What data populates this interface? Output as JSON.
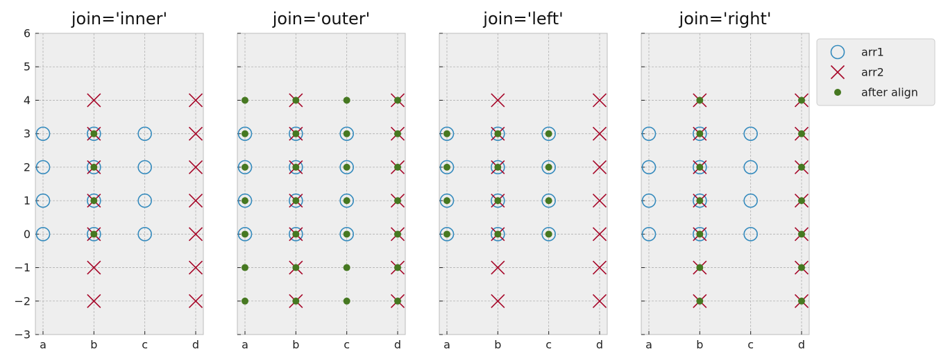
{
  "chart_data": [
    {
      "type": "scatter",
      "title": "join='inner'",
      "categories": [
        "a",
        "b",
        "c",
        "d"
      ],
      "ylim": [
        -3,
        6
      ],
      "yticks": [
        -3,
        -2,
        -1,
        0,
        1,
        2,
        3,
        4,
        5,
        6
      ],
      "show_ytick_labels": true,
      "grid": true,
      "series": [
        {
          "name": "arr1",
          "marker": "circle-open",
          "color": "#348abd",
          "points": [
            [
              "a",
              0
            ],
            [
              "a",
              1
            ],
            [
              "a",
              2
            ],
            [
              "a",
              3
            ],
            [
              "b",
              0
            ],
            [
              "b",
              1
            ],
            [
              "b",
              2
            ],
            [
              "b",
              3
            ],
            [
              "c",
              0
            ],
            [
              "c",
              1
            ],
            [
              "c",
              2
            ],
            [
              "c",
              3
            ]
          ]
        },
        {
          "name": "arr2",
          "marker": "x",
          "color": "#a60628",
          "points": [
            [
              "b",
              -2
            ],
            [
              "b",
              -1
            ],
            [
              "b",
              0
            ],
            [
              "b",
              1
            ],
            [
              "b",
              2
            ],
            [
              "b",
              3
            ],
            [
              "b",
              4
            ],
            [
              "d",
              -2
            ],
            [
              "d",
              -1
            ],
            [
              "d",
              0
            ],
            [
              "d",
              1
            ],
            [
              "d",
              2
            ],
            [
              "d",
              3
            ],
            [
              "d",
              4
            ]
          ]
        },
        {
          "name": "after align",
          "marker": "dot",
          "color": "#467821",
          "points": [
            [
              "b",
              0
            ],
            [
              "b",
              1
            ],
            [
              "b",
              2
            ],
            [
              "b",
              3
            ]
          ]
        }
      ]
    },
    {
      "type": "scatter",
      "title": "join='outer'",
      "categories": [
        "a",
        "b",
        "c",
        "d"
      ],
      "ylim": [
        -3,
        6
      ],
      "yticks": [
        -3,
        -2,
        -1,
        0,
        1,
        2,
        3,
        4,
        5,
        6
      ],
      "show_ytick_labels": false,
      "grid": true,
      "series": [
        {
          "name": "arr1",
          "marker": "circle-open",
          "color": "#348abd",
          "points": [
            [
              "a",
              0
            ],
            [
              "a",
              1
            ],
            [
              "a",
              2
            ],
            [
              "a",
              3
            ],
            [
              "b",
              0
            ],
            [
              "b",
              1
            ],
            [
              "b",
              2
            ],
            [
              "b",
              3
            ],
            [
              "c",
              0
            ],
            [
              "c",
              1
            ],
            [
              "c",
              2
            ],
            [
              "c",
              3
            ]
          ]
        },
        {
          "name": "arr2",
          "marker": "x",
          "color": "#a60628",
          "points": [
            [
              "b",
              -2
            ],
            [
              "b",
              -1
            ],
            [
              "b",
              0
            ],
            [
              "b",
              1
            ],
            [
              "b",
              2
            ],
            [
              "b",
              3
            ],
            [
              "b",
              4
            ],
            [
              "d",
              -2
            ],
            [
              "d",
              -1
            ],
            [
              "d",
              0
            ],
            [
              "d",
              1
            ],
            [
              "d",
              2
            ],
            [
              "d",
              3
            ],
            [
              "d",
              4
            ]
          ]
        },
        {
          "name": "after align",
          "marker": "dot",
          "color": "#467821",
          "points": [
            [
              "a",
              -2
            ],
            [
              "a",
              -1
            ],
            [
              "a",
              0
            ],
            [
              "a",
              1
            ],
            [
              "a",
              2
            ],
            [
              "a",
              3
            ],
            [
              "a",
              4
            ],
            [
              "b",
              -2
            ],
            [
              "b",
              -1
            ],
            [
              "b",
              0
            ],
            [
              "b",
              1
            ],
            [
              "b",
              2
            ],
            [
              "b",
              3
            ],
            [
              "b",
              4
            ],
            [
              "c",
              -2
            ],
            [
              "c",
              -1
            ],
            [
              "c",
              0
            ],
            [
              "c",
              1
            ],
            [
              "c",
              2
            ],
            [
              "c",
              3
            ],
            [
              "c",
              4
            ],
            [
              "d",
              -2
            ],
            [
              "d",
              -1
            ],
            [
              "d",
              0
            ],
            [
              "d",
              1
            ],
            [
              "d",
              2
            ],
            [
              "d",
              3
            ],
            [
              "d",
              4
            ]
          ]
        }
      ]
    },
    {
      "type": "scatter",
      "title": "join='left'",
      "categories": [
        "a",
        "b",
        "c",
        "d"
      ],
      "ylim": [
        -3,
        6
      ],
      "yticks": [
        -3,
        -2,
        -1,
        0,
        1,
        2,
        3,
        4,
        5,
        6
      ],
      "show_ytick_labels": false,
      "grid": true,
      "series": [
        {
          "name": "arr1",
          "marker": "circle-open",
          "color": "#348abd",
          "points": [
            [
              "a",
              0
            ],
            [
              "a",
              1
            ],
            [
              "a",
              2
            ],
            [
              "a",
              3
            ],
            [
              "b",
              0
            ],
            [
              "b",
              1
            ],
            [
              "b",
              2
            ],
            [
              "b",
              3
            ],
            [
              "c",
              0
            ],
            [
              "c",
              1
            ],
            [
              "c",
              2
            ],
            [
              "c",
              3
            ]
          ]
        },
        {
          "name": "arr2",
          "marker": "x",
          "color": "#a60628",
          "points": [
            [
              "b",
              -2
            ],
            [
              "b",
              -1
            ],
            [
              "b",
              0
            ],
            [
              "b",
              1
            ],
            [
              "b",
              2
            ],
            [
              "b",
              3
            ],
            [
              "b",
              4
            ],
            [
              "d",
              -2
            ],
            [
              "d",
              -1
            ],
            [
              "d",
              0
            ],
            [
              "d",
              1
            ],
            [
              "d",
              2
            ],
            [
              "d",
              3
            ],
            [
              "d",
              4
            ]
          ]
        },
        {
          "name": "after align",
          "marker": "dot",
          "color": "#467821",
          "points": [
            [
              "a",
              0
            ],
            [
              "a",
              1
            ],
            [
              "a",
              2
            ],
            [
              "a",
              3
            ],
            [
              "b",
              0
            ],
            [
              "b",
              1
            ],
            [
              "b",
              2
            ],
            [
              "b",
              3
            ],
            [
              "c",
              0
            ],
            [
              "c",
              1
            ],
            [
              "c",
              2
            ],
            [
              "c",
              3
            ]
          ]
        }
      ]
    },
    {
      "type": "scatter",
      "title": "join='right'",
      "categories": [
        "a",
        "b",
        "c",
        "d"
      ],
      "ylim": [
        -3,
        6
      ],
      "yticks": [
        -3,
        -2,
        -1,
        0,
        1,
        2,
        3,
        4,
        5,
        6
      ],
      "show_ytick_labels": false,
      "grid": true,
      "series": [
        {
          "name": "arr1",
          "marker": "circle-open",
          "color": "#348abd",
          "points": [
            [
              "a",
              0
            ],
            [
              "a",
              1
            ],
            [
              "a",
              2
            ],
            [
              "a",
              3
            ],
            [
              "b",
              0
            ],
            [
              "b",
              1
            ],
            [
              "b",
              2
            ],
            [
              "b",
              3
            ],
            [
              "c",
              0
            ],
            [
              "c",
              1
            ],
            [
              "c",
              2
            ],
            [
              "c",
              3
            ]
          ]
        },
        {
          "name": "arr2",
          "marker": "x",
          "color": "#a60628",
          "points": [
            [
              "b",
              -2
            ],
            [
              "b",
              -1
            ],
            [
              "b",
              0
            ],
            [
              "b",
              1
            ],
            [
              "b",
              2
            ],
            [
              "b",
              3
            ],
            [
              "b",
              4
            ],
            [
              "d",
              -2
            ],
            [
              "d",
              -1
            ],
            [
              "d",
              0
            ],
            [
              "d",
              1
            ],
            [
              "d",
              2
            ],
            [
              "d",
              3
            ],
            [
              "d",
              4
            ]
          ]
        },
        {
          "name": "after align",
          "marker": "dot",
          "color": "#467821",
          "points": [
            [
              "b",
              -2
            ],
            [
              "b",
              -1
            ],
            [
              "b",
              0
            ],
            [
              "b",
              1
            ],
            [
              "b",
              2
            ],
            [
              "b",
              3
            ],
            [
              "b",
              4
            ],
            [
              "d",
              -2
            ],
            [
              "d",
              -1
            ],
            [
              "d",
              0
            ],
            [
              "d",
              1
            ],
            [
              "d",
              2
            ],
            [
              "d",
              3
            ],
            [
              "d",
              4
            ]
          ]
        }
      ]
    }
  ],
  "legend": {
    "placement": "outside-right-top",
    "entries": [
      {
        "label": "arr1",
        "marker": "circle-open",
        "color": "#348abd"
      },
      {
        "label": "arr2",
        "marker": "x",
        "color": "#a60628"
      },
      {
        "label": "after align",
        "marker": "dot",
        "color": "#467821"
      }
    ]
  }
}
